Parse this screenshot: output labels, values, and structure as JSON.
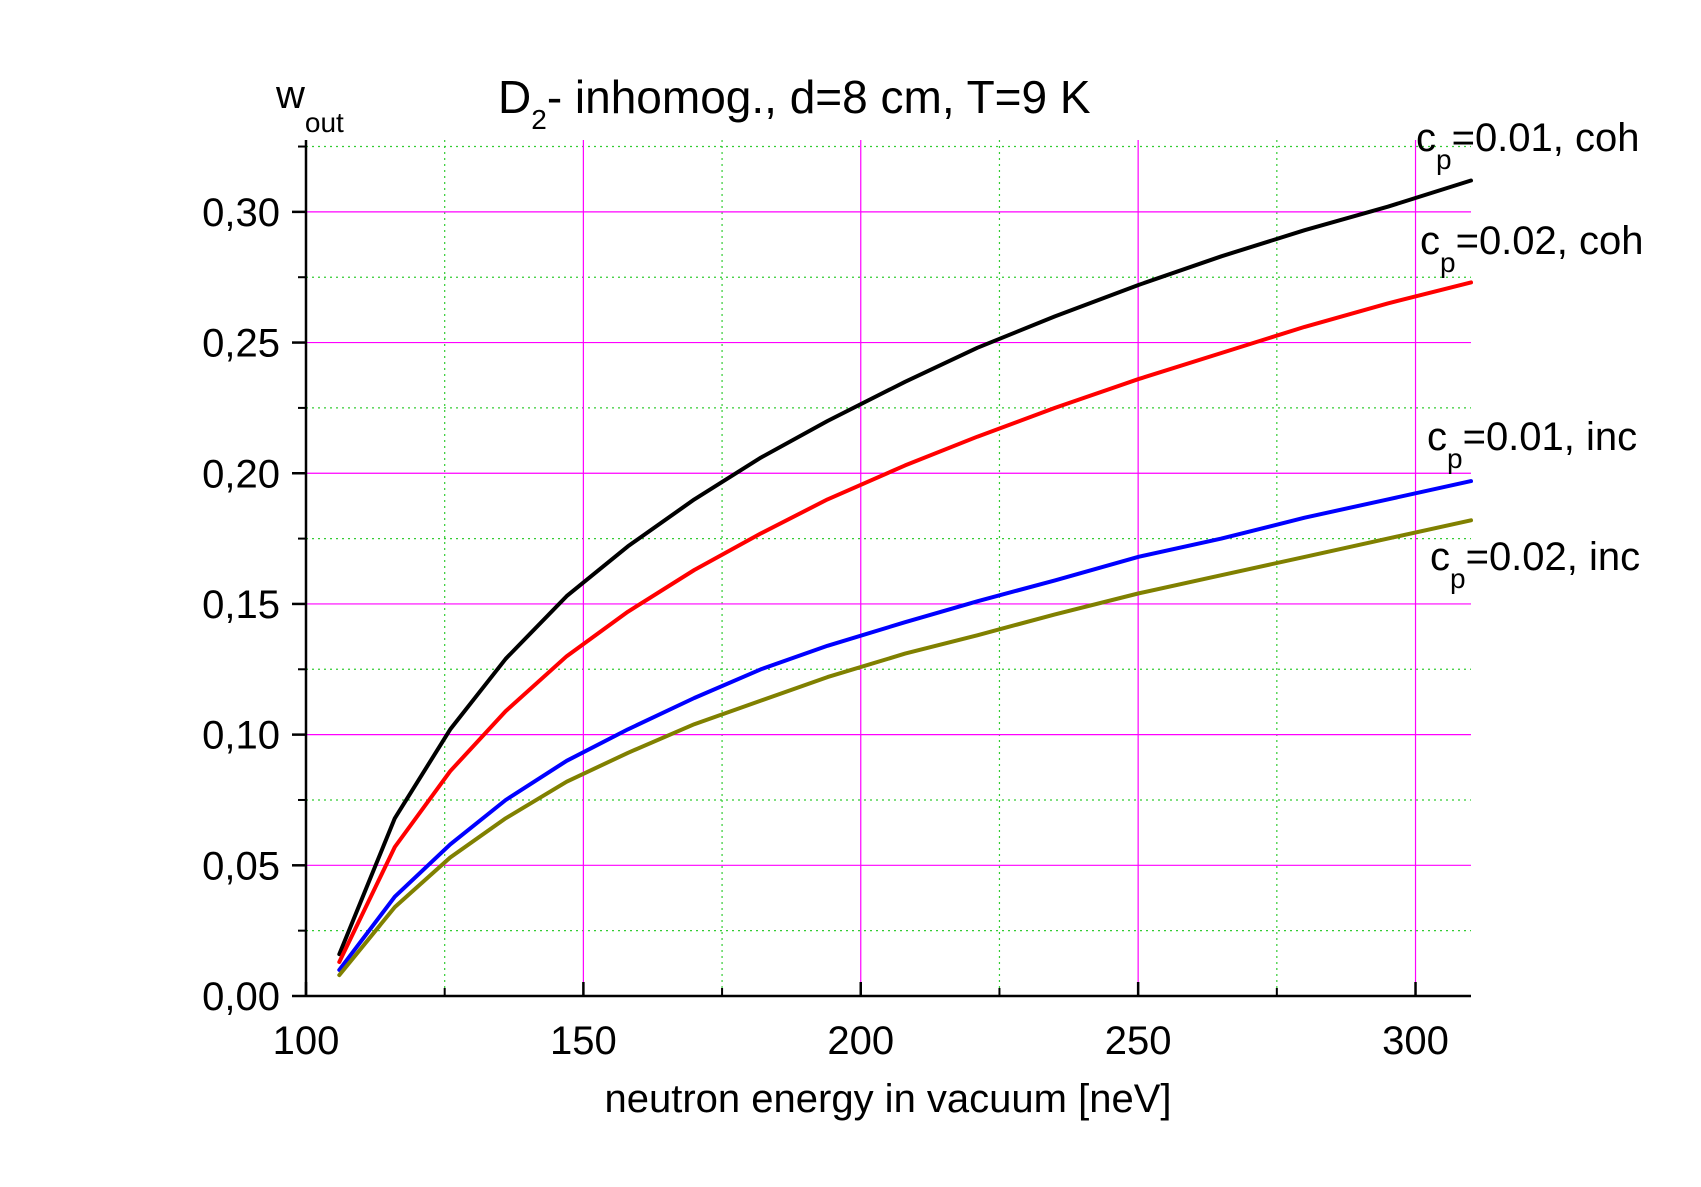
{
  "chart_data": {
    "type": "line",
    "title": {
      "main": "D",
      "sub": "2",
      "rest": "- inhomog., d=8 cm, T=9 K"
    },
    "ylabel": {
      "main": "w",
      "sub": "out"
    },
    "xlabel": "neutron energy in vacuum [neV]",
    "xlim": [
      100,
      310
    ],
    "ylim": [
      0,
      0.3275
    ],
    "x_ticks": [
      100,
      150,
      200,
      250,
      300
    ],
    "x_tick_labels": [
      "100",
      "150",
      "200",
      "250",
      "300"
    ],
    "y_ticks": [
      0,
      0.05,
      0.1,
      0.15,
      0.2,
      0.25,
      0.3
    ],
    "y_tick_labels": [
      "0,00",
      "0,05",
      "0,10",
      "0,15",
      "0,20",
      "0,25",
      "0,30"
    ],
    "grid": true,
    "major_grid_color": "#ff00ff",
    "minor_grid_color": "#33cc33",
    "series": [
      {
        "name": "cp=0.01, coh",
        "label": {
          "main": "c",
          "sub": "p",
          "rest": "=0.01, coh"
        },
        "color": "#000000",
        "x": [
          106,
          116,
          126,
          136,
          147,
          158,
          170,
          182,
          194,
          208,
          221,
          235,
          250,
          265,
          280,
          295,
          310
        ],
        "y": [
          0.016,
          0.068,
          0.102,
          0.129,
          0.153,
          0.172,
          0.19,
          0.206,
          0.22,
          0.235,
          0.248,
          0.26,
          0.272,
          0.283,
          0.293,
          0.302,
          0.312
        ]
      },
      {
        "name": "cp=0.02, coh",
        "label": {
          "main": "c",
          "sub": "p",
          "rest": "=0.02, coh"
        },
        "color": "#ff0000",
        "x": [
          106,
          116,
          126,
          136,
          147,
          158,
          170,
          182,
          194,
          208,
          221,
          235,
          250,
          265,
          280,
          295,
          310
        ],
        "y": [
          0.013,
          0.057,
          0.086,
          0.109,
          0.13,
          0.147,
          0.163,
          0.177,
          0.19,
          0.203,
          0.214,
          0.225,
          0.236,
          0.246,
          0.256,
          0.265,
          0.273
        ]
      },
      {
        "name": "cp=0.01, inc",
        "label": {
          "main": "c",
          "sub": "p",
          "rest": "=0.01, inc"
        },
        "color": "#0000ff",
        "x": [
          106,
          116,
          126,
          136,
          147,
          158,
          170,
          182,
          194,
          208,
          221,
          235,
          250,
          265,
          280,
          295,
          310
        ],
        "y": [
          0.01,
          0.038,
          0.058,
          0.075,
          0.09,
          0.102,
          0.114,
          0.125,
          0.134,
          0.143,
          0.151,
          0.159,
          0.168,
          0.175,
          0.183,
          0.19,
          0.197
        ]
      },
      {
        "name": "cp=0.02, inc",
        "label": {
          "main": "c",
          "sub": "p",
          "rest": "=0.02, inc"
        },
        "color": "#808000",
        "x": [
          106,
          116,
          126,
          136,
          147,
          158,
          170,
          182,
          194,
          208,
          221,
          235,
          250,
          265,
          280,
          295,
          310
        ],
        "y": [
          0.008,
          0.034,
          0.053,
          0.068,
          0.082,
          0.093,
          0.104,
          0.113,
          0.122,
          0.131,
          0.138,
          0.146,
          0.154,
          0.161,
          0.168,
          0.175,
          0.182
        ]
      }
    ]
  }
}
